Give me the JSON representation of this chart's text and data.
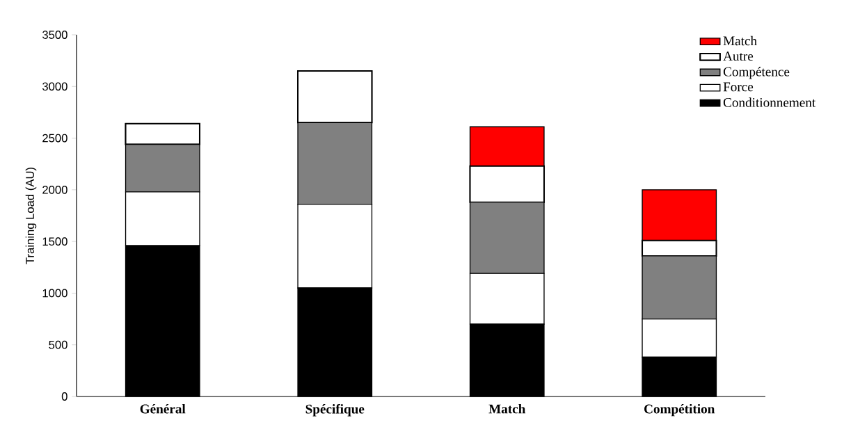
{
  "chart_data": {
    "type": "bar",
    "stacked": true,
    "ylabel": "Training Load (AU)",
    "categories": [
      "Général",
      "Spécifique",
      "Match",
      "Compétition"
    ],
    "series": [
      {
        "name": "Conditionnement",
        "color": "#000000",
        "values": [
          1460,
          1050,
          700,
          380
        ]
      },
      {
        "name": "Force",
        "color": "#ffffff",
        "values": [
          520,
          810,
          490,
          370
        ]
      },
      {
        "name": "Compétence",
        "color": "#808080",
        "values": [
          460,
          790,
          690,
          610
        ]
      },
      {
        "name": "Autre",
        "color": "#ffffff",
        "values": [
          200,
          500,
          350,
          150
        ]
      },
      {
        "name": "Match",
        "color": "#ff0000",
        "values": [
          null,
          null,
          380,
          490
        ]
      }
    ],
    "ylim": [
      0,
      3500
    ],
    "yticks": [
      0,
      500,
      1000,
      1500,
      2000,
      2500,
      3000,
      3500
    ],
    "legend": "top right"
  }
}
